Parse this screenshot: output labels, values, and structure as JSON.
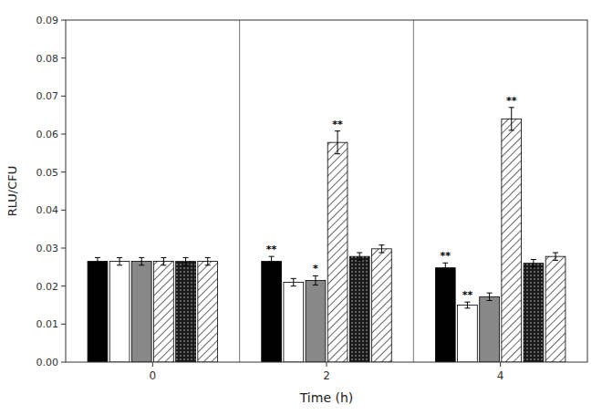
{
  "chart_data": {
    "type": "bar",
    "xlabel": "Time (h)",
    "ylabel": "RLU/CFU",
    "categories": [
      "0",
      "2",
      "4"
    ],
    "series": [
      {
        "color": "#000000",
        "values": [
          0.0265,
          0.0265,
          0.0248
        ],
        "errors": [
          0.001,
          0.0013,
          0.0013
        ]
      },
      {
        "color": "#ffffff",
        "values": [
          0.0265,
          0.021,
          0.015
        ],
        "errors": [
          0.001,
          0.001,
          0.0008
        ]
      },
      {
        "color": "#888888",
        "values": [
          0.0265,
          0.0215,
          0.0172
        ],
        "errors": [
          0.001,
          0.0012,
          0.001
        ]
      },
      {
        "color": "#ffffff",
        "values": [
          0.0265,
          0.0578,
          0.064
        ],
        "errors": [
          0.001,
          0.003,
          0.003
        ]
      },
      {
        "color": "#1a1a1a",
        "values": [
          0.0265,
          0.0278,
          0.026
        ],
        "errors": [
          0.001,
          0.001,
          0.001
        ]
      },
      {
        "color": "#ffffff",
        "values": [
          0.0265,
          0.0298,
          0.0278
        ],
        "errors": [
          0.001,
          0.001,
          0.001
        ]
      }
    ],
    "annotations": [
      {
        "text": "**",
        "category": 1,
        "series": 0
      },
      {
        "text": "*",
        "category": 1,
        "series": 2
      },
      {
        "text": "**",
        "category": 1,
        "series": 3
      },
      {
        "text": "**",
        "category": 2,
        "series": 0
      },
      {
        "text": "**",
        "category": 2,
        "series": 1
      },
      {
        "text": "**",
        "category": 2,
        "series": 3
      }
    ],
    "ylim": [
      0,
      0.09
    ],
    "yticks": [
      {
        "value": 0,
        "label": "0.00"
      },
      0.01,
      0.02,
      0.03,
      0.04,
      0.05,
      0.06,
      0.07,
      0.08,
      0.09
    ],
    "grid": false
  }
}
